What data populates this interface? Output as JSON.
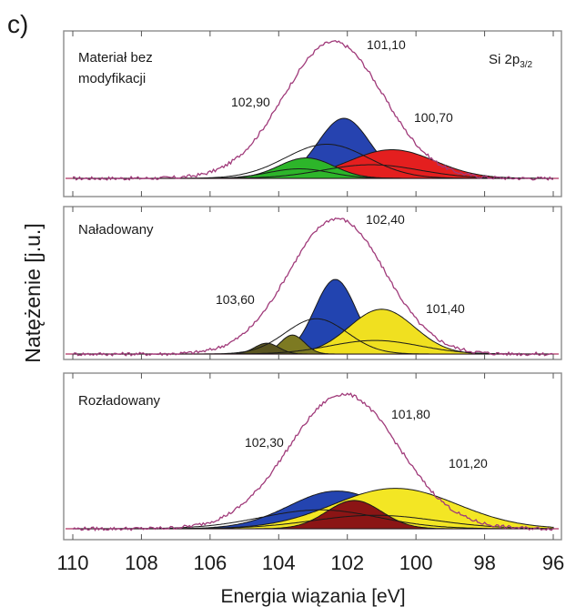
{
  "figure_label": "c)",
  "chart_data": {
    "type": "area",
    "ylabel": "Natężenie [j.u.]",
    "xlabel": "Energia wiązania [eV]",
    "xlim": [
      110,
      96
    ],
    "x_axis_reversed": true,
    "x_ticks": [
      "110",
      "108",
      "106",
      "104",
      "102",
      "100",
      "98",
      "96"
    ],
    "grid": false,
    "panels": [
      {
        "label": "Materiał bez modyfikacji",
        "label_lines": [
          "Materiał bez",
          "modyfikacji"
        ],
        "subtitle": "Si 2p3/2",
        "subtitle_main": "Si 2p",
        "subtitle_sub": "3/2",
        "annotations": [
          "102,90",
          "101,10",
          "100,70"
        ],
        "envelope": {
          "center": 102.4,
          "sigma": 1.45,
          "amplitude": 1.0
        },
        "components": [
          {
            "center": 102.1,
            "sigma": 0.75,
            "amplitude": 0.44,
            "color": "#2643b0"
          },
          {
            "center": 102.6,
            "sigma": 1.2,
            "amplitude": 0.25,
            "color": "#2643b0",
            "outline_only": true
          },
          {
            "center": 100.7,
            "sigma": 1.25,
            "amplitude": 0.21,
            "color": "#e41f1f"
          },
          {
            "center": 101.3,
            "sigma": 1.4,
            "amplitude": 0.1,
            "color": "#e41f1f",
            "outline_only": true
          },
          {
            "center": 103.2,
            "sigma": 0.8,
            "amplitude": 0.15,
            "color": "#2db52a"
          },
          {
            "center": 103.4,
            "sigma": 0.9,
            "amplitude": 0.07,
            "color": "#2db52a",
            "outline_only": true
          }
        ]
      },
      {
        "label": "Naładowany",
        "label_lines": [
          "Naładowany"
        ],
        "annotations": [
          "103,60",
          "102,40",
          "101,40"
        ],
        "envelope": {
          "center": 102.3,
          "sigma": 1.4,
          "amplitude": 1.0
        },
        "components": [
          {
            "center": 102.35,
            "sigma": 0.6,
            "amplitude": 0.55,
            "color": "#2244b0"
          },
          {
            "center": 102.9,
            "sigma": 0.9,
            "amplitude": 0.26,
            "color": "#2244b0",
            "outline_only": true
          },
          {
            "center": 101.0,
            "sigma": 0.95,
            "amplitude": 0.33,
            "color": "#f0e020"
          },
          {
            "center": 101.2,
            "sigma": 1.3,
            "amplitude": 0.1,
            "color": "#f0e020",
            "outline_only": true
          },
          {
            "center": 103.6,
            "sigma": 0.35,
            "amplitude": 0.14,
            "color": "#7d7a22"
          },
          {
            "center": 104.35,
            "sigma": 0.35,
            "amplitude": 0.08,
            "color": "#5a5520"
          }
        ]
      },
      {
        "label": "Rozładowany",
        "label_lines": [
          "Rozładowany"
        ],
        "annotations": [
          "102,30",
          "101,80",
          "101,20"
        ],
        "envelope": {
          "center": 102.1,
          "sigma": 1.6,
          "amplitude": 1.0
        },
        "components": [
          {
            "center": 102.3,
            "sigma": 1.4,
            "amplitude": 0.28,
            "color": "#2444b0"
          },
          {
            "center": 102.8,
            "sigma": 1.7,
            "amplitude": 0.14,
            "color": "#2444b0",
            "outline_only": true
          },
          {
            "center": 100.6,
            "sigma": 1.8,
            "amplitude": 0.3,
            "color": "#f3e624"
          },
          {
            "center": 101.2,
            "sigma": 1.8,
            "amplitude": 0.1,
            "color": "#f3e624",
            "outline_only": true
          },
          {
            "center": 101.8,
            "sigma": 0.8,
            "amplitude": 0.21,
            "color": "#8b1515"
          }
        ]
      }
    ]
  }
}
